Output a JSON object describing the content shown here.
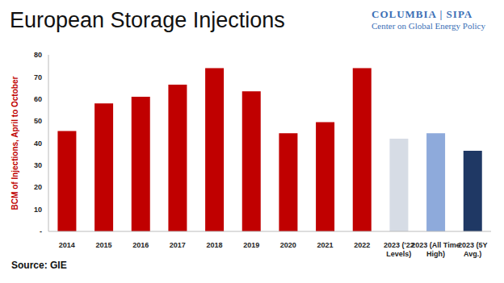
{
  "chart_data": {
    "type": "bar",
    "title": "European Storage Injections",
    "ylabel": "BCM of Injections, April to October",
    "annotations": [
      "COLUMBIA | SIPA",
      "Center on Global Energy Policy"
    ],
    "source": "Source: GIE",
    "categories": [
      "2014",
      "2015",
      "2016",
      "2017",
      "2018",
      "2019",
      "2020",
      "2021",
      "2022",
      "2023 ('22 Levels)",
      "2023 (All Time High)",
      "2023 (5Y Avg.)"
    ],
    "values": [
      45.5,
      58,
      61,
      66.5,
      74,
      63.5,
      44.5,
      49.5,
      74,
      42,
      44.5,
      36.5
    ],
    "colors": [
      "#c00000",
      "#c00000",
      "#c00000",
      "#c00000",
      "#c00000",
      "#c00000",
      "#c00000",
      "#c00000",
      "#c00000",
      "#d6dce5",
      "#8eaadb",
      "#1f3864"
    ],
    "ylim": [
      0,
      80
    ],
    "yticks": [
      {
        "value": 0,
        "label": "-"
      },
      10,
      20,
      30,
      40,
      50,
      60,
      70,
      80
    ],
    "grid": false
  }
}
